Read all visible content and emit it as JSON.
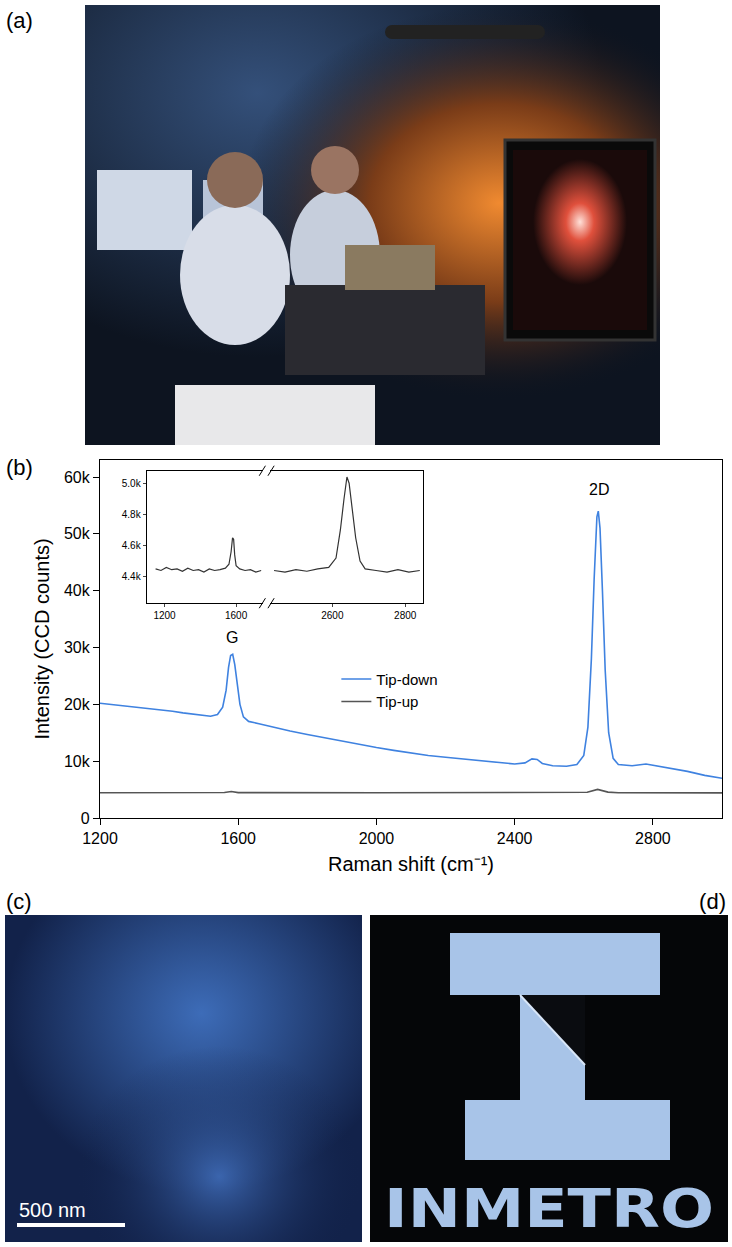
{
  "panels": {
    "a": {
      "label": "(a)"
    },
    "b": {
      "label": "(b)"
    },
    "c": {
      "label": "(c)",
      "scale_bar": "500 nm"
    },
    "d": {
      "label": "(d)",
      "logo_text": "INMETRO"
    }
  },
  "chart_data": [
    {
      "type": "line",
      "xlabel": "Raman shift (cm⁻¹)",
      "ylabel": "Intensity (CCD counts)",
      "xlim": [
        1200,
        3000
      ],
      "xticks": [
        1200,
        1600,
        2000,
        2400,
        2800
      ],
      "ylim": [
        0,
        63000
      ],
      "yticks": [
        0,
        {
          "value": 10000,
          "label": "10k"
        },
        {
          "value": 20000,
          "label": "20k"
        },
        {
          "value": 30000,
          "label": "30k"
        },
        {
          "value": 40000,
          "label": "40k"
        },
        {
          "value": 50000,
          "label": "50k"
        },
        {
          "value": 60000,
          "label": "60k"
        }
      ],
      "grid": false,
      "legend": "center",
      "annotations": [
        {
          "text": "G",
          "x": 1582,
          "y": 30000
        },
        {
          "text": "2D",
          "x": 2645,
          "y": 56000
        }
      ],
      "series": [
        {
          "name": "Tip-down",
          "color": "#3f82e0",
          "x": [
            1200,
            1230,
            1260,
            1290,
            1320,
            1350,
            1380,
            1410,
            1440,
            1470,
            1500,
            1520,
            1540,
            1555,
            1565,
            1572,
            1578,
            1584,
            1590,
            1597,
            1605,
            1615,
            1630,
            1660,
            1700,
            1750,
            1800,
            1850,
            1900,
            1950,
            2000,
            2050,
            2100,
            2150,
            2200,
            2250,
            2300,
            2350,
            2400,
            2430,
            2450,
            2465,
            2480,
            2510,
            2550,
            2580,
            2600,
            2612,
            2622,
            2630,
            2638,
            2642,
            2647,
            2654,
            2662,
            2672,
            2685,
            2700,
            2740,
            2780,
            2800,
            2850,
            2900,
            2950,
            3000
          ],
          "values": [
            20200,
            20000,
            19900,
            19700,
            19500,
            19300,
            19000,
            18800,
            18500,
            18300,
            18000,
            17900,
            18200,
            19500,
            22500,
            26500,
            28600,
            28800,
            27000,
            23500,
            20000,
            17800,
            17000,
            16600,
            16000,
            15300,
            14700,
            14100,
            13500,
            12900,
            12400,
            11900,
            11400,
            11000,
            10700,
            10400,
            10000,
            9700,
            9500,
            9700,
            10400,
            10300,
            9600,
            9200,
            9100,
            9400,
            11000,
            16000,
            28000,
            42000,
            53000,
            54000,
            51000,
            40000,
            26000,
            15000,
            10500,
            9400,
            9200,
            9500,
            9300,
            8800,
            8200,
            7500,
            7000
          ]
        },
        {
          "name": "Tip-up",
          "color": "#555555",
          "x": [
            1200,
            1500,
            1560,
            1580,
            1600,
            2000,
            2400,
            2610,
            2640,
            2670,
            2700,
            3000
          ],
          "values": [
            4450,
            4450,
            4480,
            4650,
            4470,
            4440,
            4440,
            4520,
            5040,
            4550,
            4450,
            4430
          ]
        }
      ]
    },
    {
      "type": "line",
      "xlim": [
        [
          1100,
          1750
        ],
        [
          2430,
          2850
        ]
      ],
      "xticks": [
        [
          1200,
          1600
        ],
        [
          2600,
          2800
        ]
      ],
      "ylim": [
        4230,
        5080
      ],
      "yticks": [
        {
          "value": 4400,
          "label": "4.4k"
        },
        {
          "value": 4600,
          "label": "4.6k"
        },
        {
          "value": 4800,
          "label": "4.8k"
        },
        {
          "value": 5000,
          "label": "5.0k"
        }
      ],
      "grid": false,
      "series": [
        {
          "color": "#333333",
          "x": [
            1150,
            1180,
            1210,
            1240,
            1270,
            1300,
            1330,
            1360,
            1390,
            1420,
            1450,
            1480,
            1510,
            1540,
            1560,
            1572,
            1580,
            1586,
            1592,
            1600,
            1620,
            1650,
            1680,
            1710,
            1740
          ],
          "values": [
            4450,
            4440,
            4460,
            4445,
            4450,
            4435,
            4455,
            4440,
            4445,
            4430,
            4450,
            4440,
            4445,
            4455,
            4480,
            4560,
            4650,
            4640,
            4540,
            4470,
            4450,
            4440,
            4445,
            4430,
            4440
          ]
        },
        {
          "color": "#333333",
          "x": [
            2440,
            2470,
            2500,
            2530,
            2560,
            2590,
            2610,
            2622,
            2632,
            2640,
            2646,
            2654,
            2664,
            2676,
            2690,
            2720,
            2750,
            2780,
            2810,
            2840
          ],
          "values": [
            4440,
            4430,
            4445,
            4435,
            4450,
            4460,
            4520,
            4700,
            4900,
            5040,
            5000,
            4850,
            4650,
            4500,
            4450,
            4440,
            4430,
            4445,
            4430,
            4440
          ]
        }
      ]
    }
  ]
}
